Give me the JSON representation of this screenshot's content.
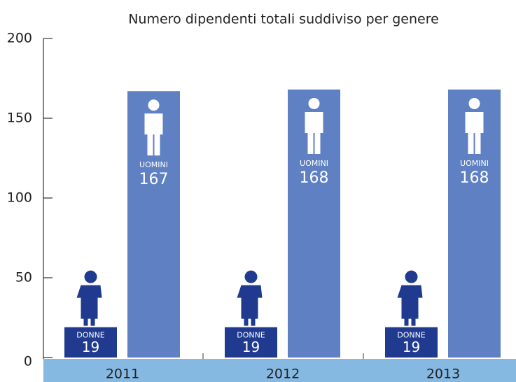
{
  "chart_data": {
    "type": "bar",
    "title": "Numero dipendenti totali suddiviso per genere",
    "categories": [
      "2011",
      "2012",
      "2013"
    ],
    "series": [
      {
        "name": "DONNE",
        "color": "#1f3a8f",
        "values": [
          19,
          19,
          19
        ]
      },
      {
        "name": "UOMINI",
        "color": "#5f80c3",
        "values": [
          167,
          168,
          168
        ]
      }
    ],
    "ylim": [
      0,
      200
    ],
    "yticks": [
      0,
      50,
      100,
      150,
      200
    ]
  }
}
